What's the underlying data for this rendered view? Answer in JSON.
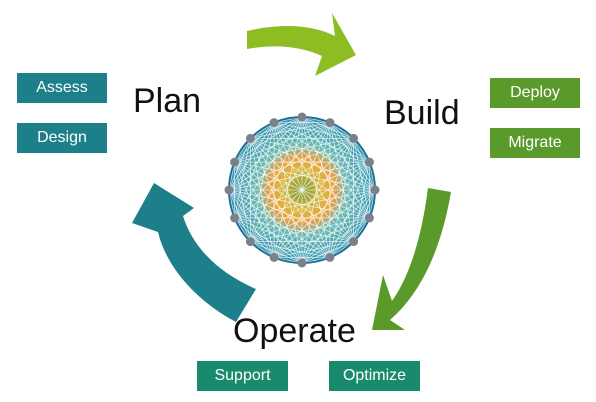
{
  "colors": {
    "plan": "#1c7f8a",
    "build": "#5a9a2b",
    "operate": "#1a8a6c",
    "arrow_top": "#8dbd23",
    "arrow_right": "#5a9a2b",
    "arrow_left": "#1c7f8a"
  },
  "phases": {
    "plan": "Plan",
    "build": "Build",
    "operate": "Operate"
  },
  "tasks": {
    "plan": [
      "Assess",
      "Design"
    ],
    "build": [
      "Deploy",
      "Migrate"
    ],
    "operate": [
      "Support",
      "Optimize"
    ]
  }
}
